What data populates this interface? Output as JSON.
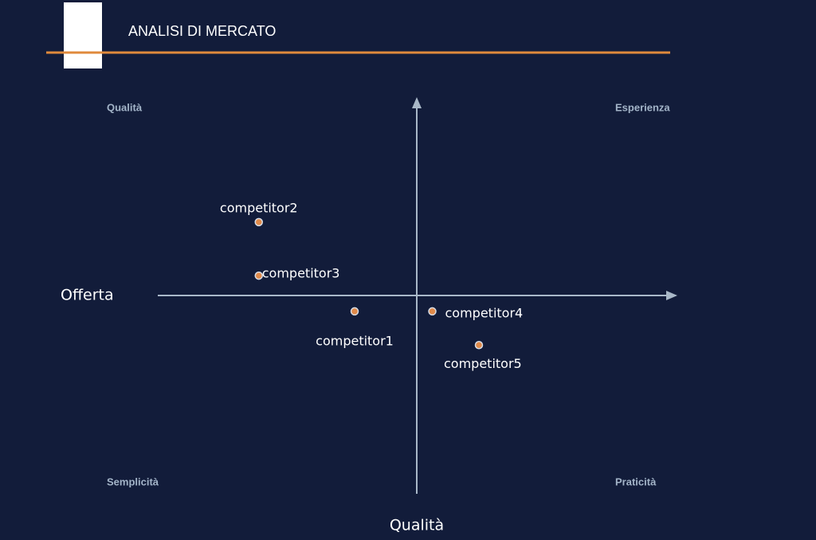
{
  "chart_data": {
    "type": "scatter",
    "title": "ANALISI DI MERCATO",
    "x_label": "Offerta",
    "y_label": "Qualità",
    "quadrant_labels": [
      "Qualità",
      "Esperienza",
      "Semplicità",
      "Praticità"
    ],
    "point_labels": [
      "competitor1",
      "competitor2",
      "competitor3",
      "competitor4",
      "competitor5"
    ],
    "x": [
      -2.4,
      -6.1,
      -6.1,
      0.6,
      2.4
    ],
    "values": [
      -0.8,
      3.7,
      1.0,
      -0.8,
      -2.5
    ],
    "color": "#e08a4a",
    "xlim": [
      -10,
      10
    ],
    "ylim": [
      -10,
      10
    ]
  }
}
